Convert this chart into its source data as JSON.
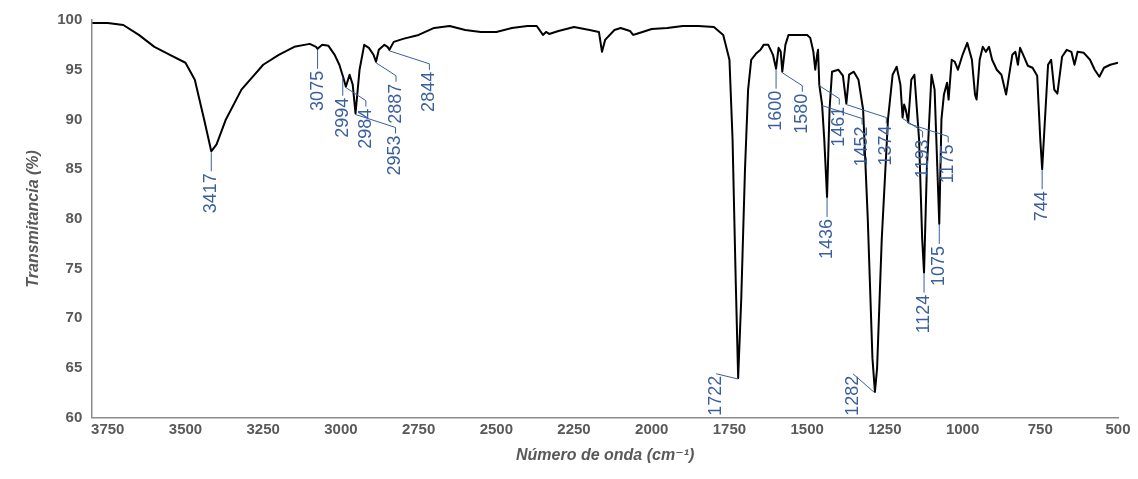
{
  "chart_data": {
    "type": "line",
    "xlabel": "Número de onda (cm⁻¹)",
    "ylabel": "Transmitancia (%)",
    "xlim": [
      3800,
      500
    ],
    "xticks": [
      3750,
      3500,
      3250,
      3000,
      2750,
      2500,
      2250,
      2000,
      1750,
      1500,
      1250,
      1000,
      750,
      500
    ],
    "ylim": [
      60,
      100
    ],
    "yticks": [
      60,
      65,
      70,
      75,
      80,
      85,
      90,
      95,
      100
    ],
    "grid": false,
    "legend": false,
    "marker": "none",
    "line_style": "solid",
    "series": [
      {
        "color": "#000000",
        "x": [
          3800,
          3750,
          3700,
          3650,
          3600,
          3550,
          3500,
          3470,
          3440,
          3417,
          3400,
          3370,
          3320,
          3250,
          3200,
          3150,
          3100,
          3080,
          3075,
          3060,
          3040,
          3020,
          3005,
          2994,
          2984,
          2972,
          2962,
          2953,
          2940,
          2925,
          2910,
          2895,
          2887,
          2878,
          2860,
          2850,
          2844,
          2830,
          2800,
          2750,
          2700,
          2650,
          2600,
          2550,
          2500,
          2450,
          2400,
          2370,
          2350,
          2340,
          2330,
          2300,
          2250,
          2200,
          2170,
          2160,
          2150,
          2120,
          2100,
          2070,
          2060,
          2050,
          2000,
          1950,
          1900,
          1850,
          1800,
          1770,
          1750,
          1740,
          1730,
          1722,
          1712,
          1700,
          1690,
          1680,
          1665,
          1650,
          1640,
          1625,
          1610,
          1600,
          1592,
          1585,
          1580,
          1570,
          1560,
          1550,
          1500,
          1490,
          1480,
          1474,
          1468,
          1465,
          1461,
          1452,
          1445,
          1436,
          1428,
          1420,
          1400,
          1385,
          1374,
          1365,
          1350,
          1335,
          1320,
          1305,
          1290,
          1282,
          1275,
          1260,
          1240,
          1225,
          1212,
          1200,
          1193,
          1188,
          1183,
          1175,
          1165,
          1155,
          1140,
          1130,
          1124,
          1115,
          1100,
          1090,
          1080,
          1075,
          1068,
          1060,
          1050,
          1045,
          1035,
          1025,
          1015,
          1000,
          985,
          970,
          960,
          955,
          945,
          935,
          925,
          915,
          905,
          890,
          875,
          860,
          850,
          840,
          830,
          822,
          815,
          805,
          790,
          775,
          760,
          750,
          744,
          735,
          725,
          715,
          705,
          695,
          680,
          665,
          650,
          640,
          630,
          610,
          590,
          575,
          560,
          545,
          525,
          500
        ],
        "values": [
          99.7,
          99.7,
          99.5,
          98.5,
          97.3,
          96.5,
          95.7,
          94,
          90,
          86.8,
          87.5,
          90,
          93,
          95.5,
          96.5,
          97.3,
          97.6,
          97.3,
          97.1,
          97.5,
          97.4,
          96.5,
          95.5,
          94.4,
          93.3,
          94.5,
          93.5,
          90.6,
          95,
          97.5,
          97.2,
          96.5,
          95.8,
          97,
          97.5,
          97.3,
          97,
          97.8,
          98.1,
          98.5,
          99.2,
          99.4,
          99,
          98.8,
          98.8,
          99.2,
          99.4,
          99.4,
          98.5,
          98.8,
          98.6,
          98.9,
          99.3,
          99,
          98.8,
          96.8,
          98,
          99,
          99.2,
          98.9,
          98.5,
          98.6,
          99.1,
          99.2,
          99.4,
          99.4,
          99.3,
          98.5,
          96,
          88,
          74,
          64,
          72,
          85,
          93,
          96,
          96.6,
          97,
          97.5,
          97.5,
          96.5,
          95.1,
          97.2,
          96.8,
          94.8,
          97.5,
          98.5,
          98.5,
          98.5,
          98.2,
          96.8,
          95,
          96.5,
          97,
          93.5,
          91.5,
          88,
          82.2,
          91,
          94.8,
          95,
          94.4,
          91.6,
          94.5,
          94.8,
          94,
          91,
          80,
          66,
          62.6,
          65,
          78,
          90,
          94.5,
          95.3,
          93.5,
          90.2,
          91.5,
          91,
          89.7,
          94,
          94.5,
          88,
          78,
          74.6,
          85,
          94.5,
          93,
          84,
          79.5,
          90,
          92.5,
          93.7,
          92,
          96,
          95.8,
          95,
          96.5,
          97.7,
          96,
          92.5,
          92,
          96,
          97.3,
          96.8,
          97.3,
          96,
          95,
          94.5,
          92.5,
          94.5,
          96.5,
          96.8,
          95.5,
          97.2,
          96.5,
          95.4,
          95.2,
          94.4,
          88,
          85,
          90,
          95.5,
          96,
          93,
          92.6,
          96.3,
          97,
          96.8,
          95.5,
          96.8,
          96.7,
          96,
          95,
          94.3,
          95.2,
          95.5,
          95.7
        ]
      }
    ],
    "annotations": [
      {
        "text": "3417",
        "x": 3417,
        "y": 86.8
      },
      {
        "text": "3075",
        "x": 3075,
        "y": 97.1
      },
      {
        "text": "2994",
        "x": 2994,
        "y": 94.4
      },
      {
        "text": "2984",
        "x": 2984,
        "y": 93.3
      },
      {
        "text": "2953",
        "x": 2953,
        "y": 90.6
      },
      {
        "text": "2887",
        "x": 2887,
        "y": 95.8
      },
      {
        "text": "2844",
        "x": 2844,
        "y": 97
      },
      {
        "text": "1722",
        "x": 1722,
        "y": 64
      },
      {
        "text": "1600",
        "x": 1600,
        "y": 95.1
      },
      {
        "text": "1580",
        "x": 1580,
        "y": 94.8
      },
      {
        "text": "1461",
        "x": 1461,
        "y": 93.5
      },
      {
        "text": "1452",
        "x": 1452,
        "y": 91.5
      },
      {
        "text": "1436",
        "x": 1436,
        "y": 82.2
      },
      {
        "text": "1374",
        "x": 1374,
        "y": 91.6
      },
      {
        "text": "1282",
        "x": 1282,
        "y": 62.6
      },
      {
        "text": "1193",
        "x": 1193,
        "y": 90.2
      },
      {
        "text": "1175",
        "x": 1175,
        "y": 89.7
      },
      {
        "text": "1124",
        "x": 1124,
        "y": 74.6
      },
      {
        "text": "1075",
        "x": 1075,
        "y": 79.5
      },
      {
        "text": "744",
        "x": 744,
        "y": 85
      }
    ]
  }
}
